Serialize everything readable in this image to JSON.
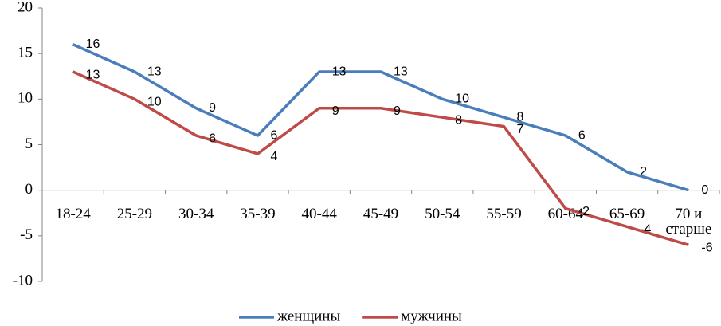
{
  "chart_data": {
    "type": "line",
    "categories": [
      "18-24",
      "25-29",
      "30-34",
      "35-39",
      "40-44",
      "45-49",
      "50-54",
      "55-59",
      "60-64",
      "65-69",
      "70 и старше"
    ],
    "series": [
      {
        "name": "женщины",
        "color": "#4a7ebb",
        "values": [
          16,
          13,
          9,
          6,
          13,
          13,
          10,
          8,
          6,
          2,
          0
        ]
      },
      {
        "name": "мужчины",
        "color": "#be4b48",
        "values": [
          13,
          10,
          6,
          4,
          9,
          9,
          8,
          7,
          -2,
          -4,
          -6
        ]
      }
    ],
    "ylim": [
      -10,
      20
    ],
    "yticks": [
      -10,
      -5,
      0,
      5,
      10,
      15,
      20
    ],
    "grid": false,
    "legend": "bottom"
  }
}
